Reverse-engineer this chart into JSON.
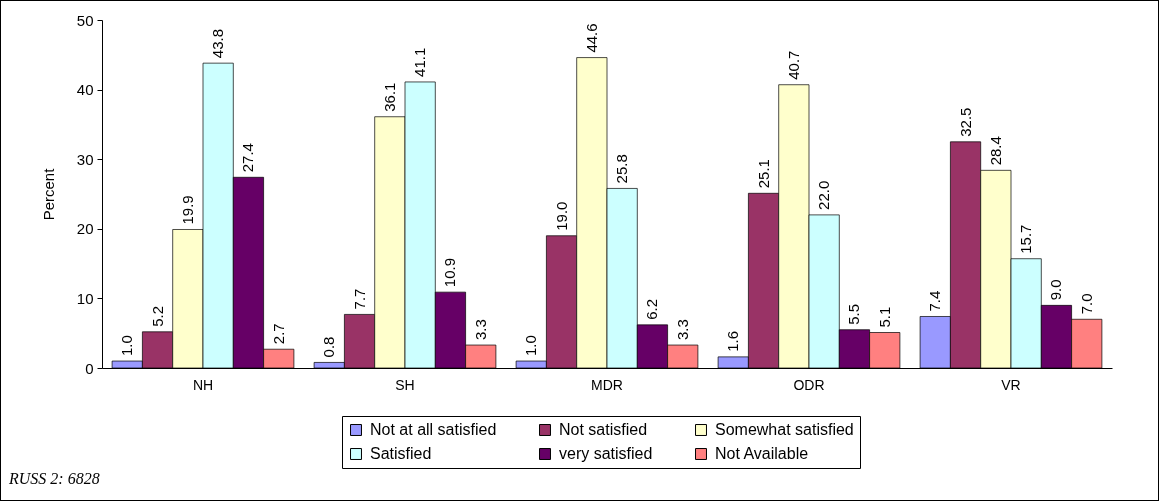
{
  "chart_data": {
    "type": "bar",
    "ylabel": "Percent",
    "categories": [
      "NH",
      "SH",
      "MDR",
      "ODR",
      "VR"
    ],
    "series": [
      {
        "name": "Not at all satisfied",
        "color": "#9999ff",
        "values": [
          1.0,
          0.8,
          1.0,
          1.6,
          7.4
        ],
        "value_labels": [
          "1.0",
          "0.8",
          "1.0",
          "1.6",
          "7.4"
        ]
      },
      {
        "name": "Not satisfied",
        "color": "#993366",
        "values": [
          5.2,
          7.7,
          19.0,
          25.1,
          32.5
        ],
        "value_labels": [
          "5.2",
          "7.7",
          "19.0",
          "25.1",
          "32.5"
        ]
      },
      {
        "name": "Somewhat satisfied",
        "color": "#ffffcc",
        "values": [
          19.9,
          36.1,
          44.6,
          40.7,
          28.4
        ],
        "value_labels": [
          "19.9",
          "36.1",
          "44.6",
          "40.7",
          "28.4"
        ]
      },
      {
        "name": "Satisfied",
        "color": "#ccffff",
        "values": [
          43.8,
          41.1,
          25.8,
          22.0,
          15.7
        ],
        "value_labels": [
          "43.8",
          "41.1",
          "25.8",
          "22.0",
          "15.7"
        ]
      },
      {
        "name": "very satisfied",
        "color": "#660066",
        "values": [
          27.4,
          10.9,
          6.2,
          5.5,
          9.0
        ],
        "value_labels": [
          "27.4",
          "10.9",
          "6.2",
          "5.5",
          "9.0"
        ]
      },
      {
        "name": "Not Available",
        "color": "#ff8080",
        "values": [
          2.7,
          3.3,
          3.3,
          5.1,
          7.0
        ],
        "value_labels": [
          "2.7",
          "3.3",
          "3.3",
          "5.1",
          "7.0"
        ]
      }
    ],
    "ylim": [
      0,
      50
    ],
    "yticks": [
      0,
      10,
      20,
      30,
      40,
      50
    ],
    "grid": false,
    "legend": "bottom right",
    "annotations": [
      "RUSS 2: 6828"
    ]
  }
}
